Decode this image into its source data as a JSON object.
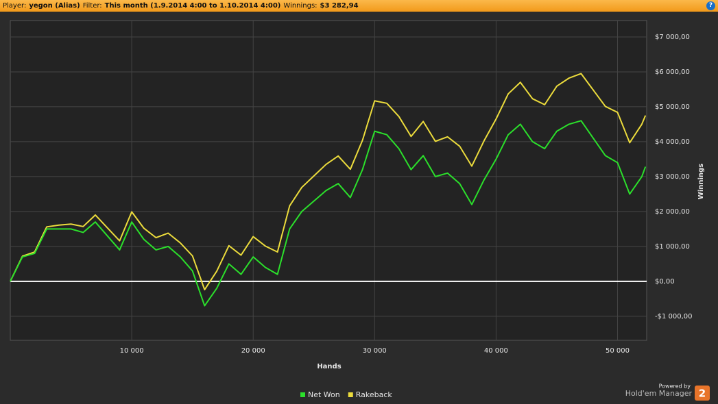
{
  "header": {
    "player_label": "Player:",
    "player": "yegon (Alias)",
    "filter_label": "Filter:",
    "filter": "This month (1.9.2014 4:00 to 1.10.2014 4:00)",
    "winnings_label": "Winnings:",
    "winnings": "$3 282,94",
    "help": "?"
  },
  "branding": {
    "powered": "Powered by",
    "product": "Hold'em Manager",
    "badge": "2"
  },
  "chart_data": {
    "type": "line",
    "x_label": "Hands",
    "y_label": "Winnings",
    "x": [
      0,
      1000,
      2000,
      3000,
      4000,
      5000,
      6000,
      7000,
      8000,
      9000,
      10000,
      11000,
      12000,
      13000,
      14000,
      15000,
      16000,
      17000,
      18000,
      19000,
      20000,
      21000,
      22000,
      23000,
      24000,
      25000,
      26000,
      27000,
      28000,
      29000,
      30000,
      31000,
      32000,
      33000,
      34000,
      35000,
      36000,
      37000,
      38000,
      39000,
      40000,
      41000,
      42000,
      43000,
      44000,
      45000,
      46000,
      47000,
      48000,
      49000,
      50000,
      51000,
      52000,
      52300
    ],
    "series": [
      {
        "name": "Net Won",
        "color": "#2be02b",
        "values": [
          0,
          700,
          800,
          1500,
          1500,
          1500,
          1400,
          1700,
          1300,
          900,
          1700,
          1200,
          900,
          1000,
          700,
          300,
          -700,
          -200,
          500,
          200,
          700,
          400,
          200,
          1500,
          2000,
          2300,
          2600,
          2800,
          2400,
          3200,
          4300,
          4200,
          3800,
          3200,
          3600,
          3000,
          3100,
          2800,
          2200,
          2900,
          3500,
          4200,
          4500,
          4000,
          3800,
          4300,
          4500,
          4600,
          4100,
          3600,
          3400,
          2500,
          3000,
          3283
        ]
      },
      {
        "name": "Rakeback",
        "color": "#ecdc3c",
        "values": [
          0,
          720,
          840,
          1560,
          1610,
          1640,
          1570,
          1900,
          1530,
          1160,
          1990,
          1520,
          1250,
          1380,
          1100,
          730,
          -240,
          290,
          1020,
          750,
          1280,
          1010,
          840,
          2160,
          2690,
          3020,
          3350,
          3590,
          3210,
          4040,
          5170,
          5100,
          4720,
          4150,
          4580,
          4010,
          4140,
          3870,
          3300,
          4020,
          4650,
          5370,
          5700,
          5230,
          5060,
          5590,
          5820,
          5950,
          5480,
          5010,
          4840,
          3970,
          4500,
          4750
        ]
      }
    ],
    "xlim": [
      0,
      52400
    ],
    "ylim": [
      -1690,
      7470
    ],
    "xticks": [
      {
        "value": 10000,
        "label": "10 000"
      },
      {
        "value": 20000,
        "label": "20 000"
      },
      {
        "value": 30000,
        "label": "30 000"
      },
      {
        "value": 40000,
        "label": "40 000"
      },
      {
        "value": 50000,
        "label": "50 000"
      }
    ],
    "yticks": [
      {
        "value": -1000,
        "label": "-$1 000,00"
      },
      {
        "value": 0,
        "label": "$0,00"
      },
      {
        "value": 1000,
        "label": "$1 000,00"
      },
      {
        "value": 2000,
        "label": "$2 000,00"
      },
      {
        "value": 3000,
        "label": "$3 000,00"
      },
      {
        "value": 4000,
        "label": "$4 000,00"
      },
      {
        "value": 5000,
        "label": "$5 000,00"
      },
      {
        "value": 6000,
        "label": "$6 000,00"
      },
      {
        "value": 7000,
        "label": "$7 000,00"
      }
    ],
    "grid": true
  }
}
